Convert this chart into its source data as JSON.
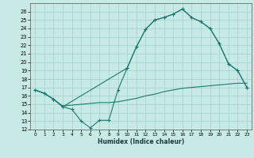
{
  "xlabel": "Humidex (Indice chaleur)",
  "background_color": "#c8eae6",
  "grid_color": "#a8d4cf",
  "line_color": "#1a7a6e",
  "xlim": [
    -0.5,
    23.5
  ],
  "ylim": [
    12,
    27
  ],
  "xticks": [
    0,
    1,
    2,
    3,
    4,
    5,
    6,
    7,
    8,
    9,
    10,
    11,
    12,
    13,
    14,
    15,
    16,
    17,
    18,
    19,
    20,
    21,
    22,
    23
  ],
  "yticks": [
    12,
    13,
    14,
    15,
    16,
    17,
    18,
    19,
    20,
    21,
    22,
    23,
    24,
    25,
    26
  ],
  "line1_x": [
    0,
    1,
    2,
    3,
    4,
    5,
    6,
    7,
    8,
    9,
    10,
    11,
    12,
    13,
    14,
    15,
    16,
    17,
    18,
    19,
    20,
    21,
    22,
    23
  ],
  "line1_y": [
    16.7,
    16.3,
    15.6,
    14.7,
    14.4,
    13.0,
    12.2,
    13.1,
    13.1,
    16.7,
    19.3,
    21.8,
    23.9,
    25.0,
    25.3,
    25.7,
    26.3,
    25.3,
    24.8,
    24.0,
    22.2,
    19.8,
    19.0,
    17.0
  ],
  "line2_x": [
    0,
    1,
    2,
    3,
    4,
    5,
    6,
    7,
    8,
    9,
    10,
    11,
    12,
    13,
    14,
    15,
    16,
    17,
    18,
    19,
    20,
    21,
    22,
    23
  ],
  "line2_y": [
    16.7,
    16.3,
    15.6,
    14.8,
    14.9,
    15.0,
    15.1,
    15.2,
    15.2,
    15.3,
    15.5,
    15.7,
    16.0,
    16.2,
    16.5,
    16.7,
    16.9,
    17.0,
    17.1,
    17.2,
    17.3,
    17.4,
    17.5,
    17.5
  ],
  "line3_x": [
    0,
    1,
    2,
    3,
    10,
    11,
    12,
    13,
    14,
    15,
    16,
    17,
    18,
    19,
    20,
    21,
    22,
    23
  ],
  "line3_y": [
    16.7,
    16.3,
    15.6,
    14.7,
    19.3,
    21.8,
    23.9,
    25.0,
    25.3,
    25.7,
    26.3,
    25.3,
    24.8,
    24.0,
    22.2,
    19.8,
    19.0,
    17.0
  ]
}
